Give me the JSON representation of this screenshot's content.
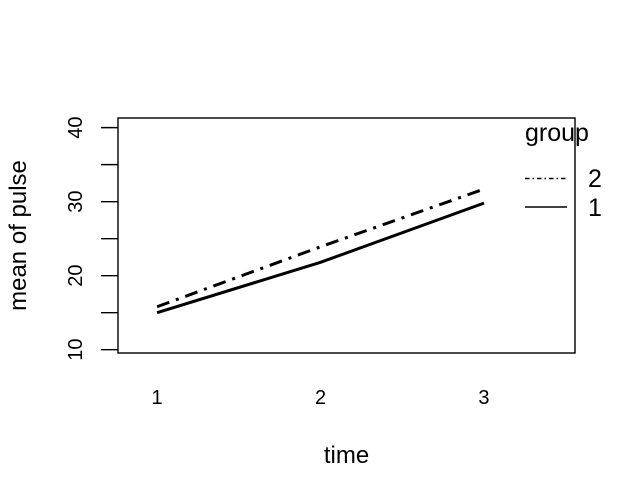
{
  "figure": {
    "background_color": "#ffffff",
    "foreground_color": "#000000"
  },
  "chart_data": {
    "type": "line",
    "title": "",
    "xlabel": "time",
    "ylabel": "mean of pulse",
    "x": [
      1,
      2,
      3
    ],
    "x_tick_labels": [
      "1",
      "2",
      "3"
    ],
    "y_tick_values_labeled": [
      10,
      20,
      30,
      40
    ],
    "y_tick_labels": [
      "10",
      "20",
      "30",
      "40"
    ],
    "y_ticks_all": [
      10,
      15,
      20,
      25,
      30,
      35,
      40
    ],
    "xlim": [
      0.761,
      3.557
    ],
    "ylim": [
      9.55,
      41.3
    ],
    "grid": false,
    "series": [
      {
        "name": "2",
        "style": "dotdash",
        "values": [
          15.8,
          23.9,
          31.7
        ]
      },
      {
        "name": "1",
        "style": "solid",
        "values": [
          15.0,
          21.8,
          29.8
        ]
      }
    ],
    "legend": {
      "title": "group",
      "position": "topright",
      "entries": [
        {
          "label": "2",
          "style": "dotdash"
        },
        {
          "label": "1",
          "style": "solid"
        }
      ]
    }
  }
}
